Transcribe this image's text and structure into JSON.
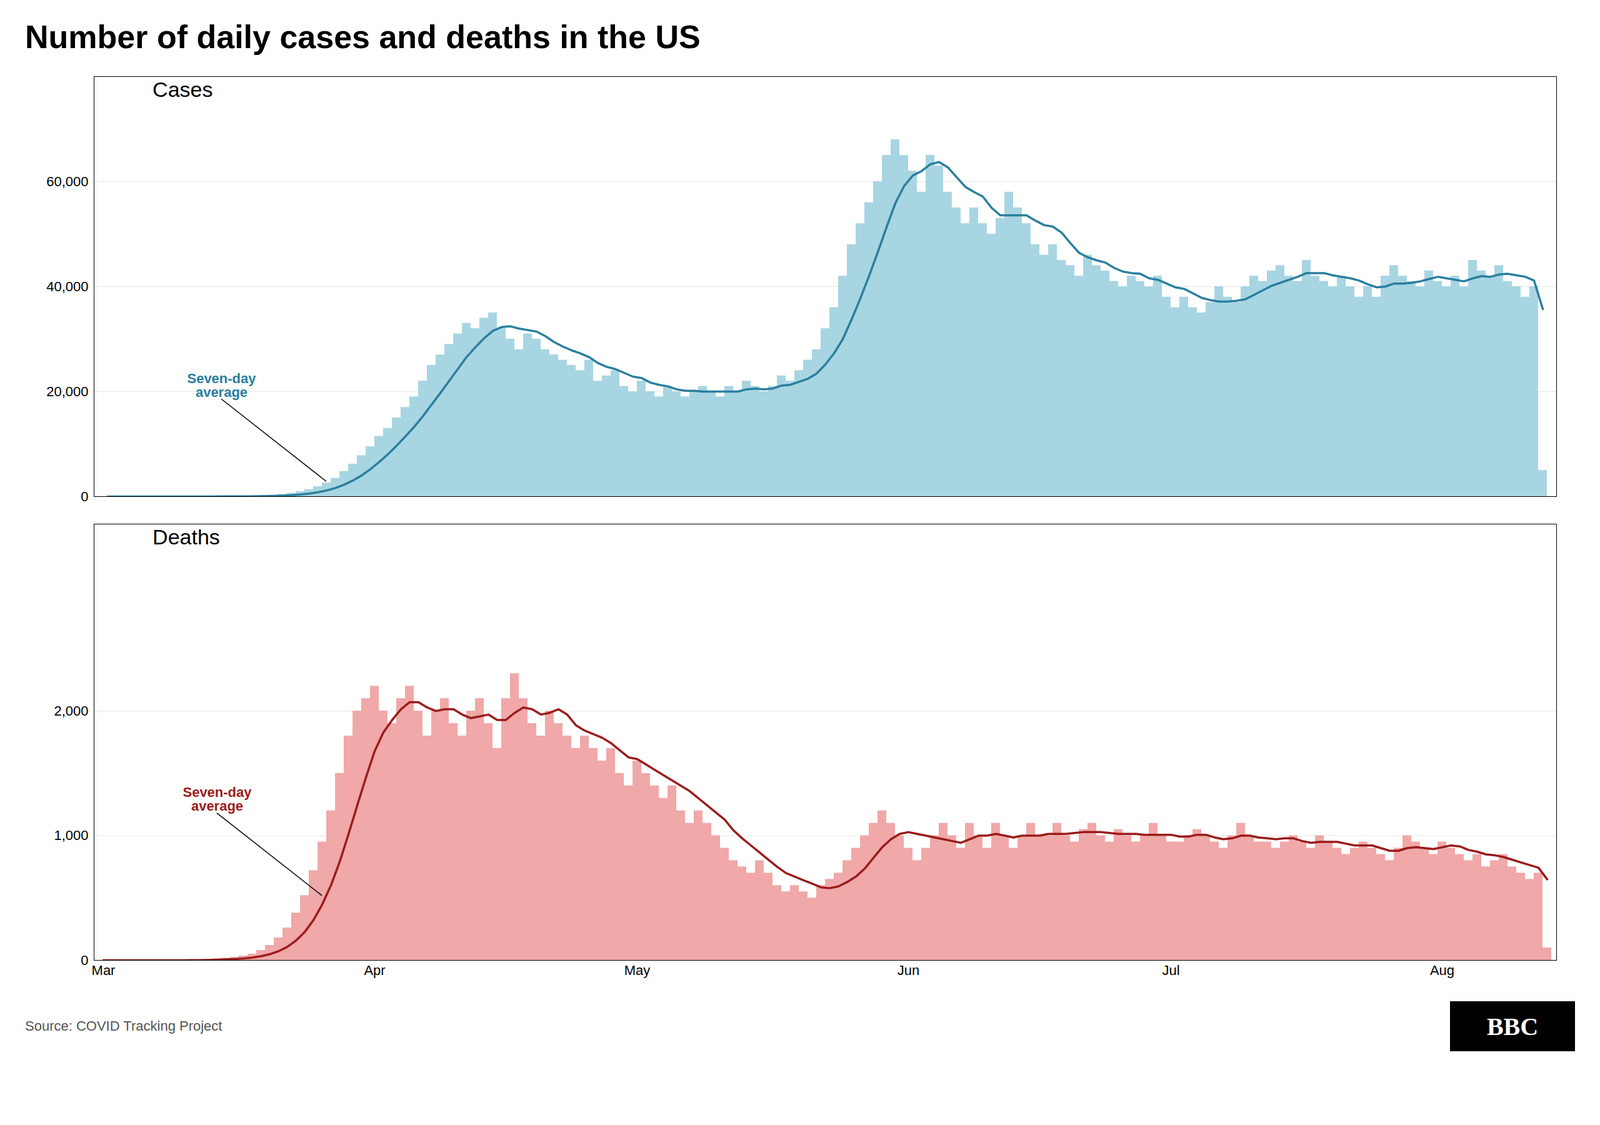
{
  "title": "Number of daily cases and deaths in the US",
  "caption": "Source: COVID Tracking Project",
  "logo": "BBC",
  "chart_data": [
    {
      "type": "bar",
      "title": "Cases",
      "annotations": [
        {
          "text": "Seven-day\naverage",
          "color": "#2a7f9e"
        }
      ],
      "series": [
        {
          "type": "bar",
          "color": "#a8d5e2",
          "values": [
            0,
            0,
            1,
            0,
            1,
            2,
            3,
            5,
            8,
            12,
            15,
            18,
            22,
            30,
            38,
            55,
            80,
            120,
            180,
            280,
            420,
            650,
            950,
            1350,
            1900,
            2600,
            3500,
            4800,
            6200,
            7800,
            9500,
            11500,
            13000,
            15000,
            17000,
            19000,
            22000,
            25000,
            27000,
            29000,
            31000,
            33000,
            32000,
            34000,
            35000,
            32000,
            30000,
            28000,
            31000,
            30000,
            28000,
            27000,
            26000,
            25000,
            24000,
            26000,
            22000,
            23000,
            24000,
            21000,
            20000,
            22000,
            20000,
            19000,
            21000,
            20000,
            19000,
            20000,
            21000,
            20000,
            19000,
            21000,
            20000,
            22000,
            21000,
            20000,
            21000,
            23000,
            22000,
            24000,
            26000,
            28000,
            32000,
            36000,
            42000,
            48000,
            52000,
            56000,
            60000,
            65000,
            68000,
            65000,
            62000,
            58000,
            65000,
            63000,
            58000,
            55000,
            52000,
            55000,
            52000,
            50000,
            53000,
            58000,
            55000,
            52000,
            48000,
            46000,
            48000,
            45000,
            44000,
            42000,
            46000,
            44000,
            43000,
            41000,
            40000,
            42000,
            41000,
            40000,
            42000,
            38000,
            36000,
            38000,
            36000,
            35000,
            37000,
            40000,
            38000,
            37000,
            40000,
            42000,
            41000,
            43000,
            44000,
            42000,
            41000,
            45000,
            42000,
            41000,
            40000,
            42000,
            40000,
            38000,
            40000,
            38000,
            42000,
            44000,
            42000,
            41000,
            40000,
            43000,
            41000,
            40000,
            42000,
            40000,
            45000,
            43000,
            42000,
            44000,
            41000,
            40000,
            38000,
            40000,
            5000
          ]
        },
        {
          "type": "line",
          "color": "#2a7f9e",
          "values": [
            0,
            0,
            0.333,
            0.25,
            0.4,
            0.667,
            1,
            1.714,
            2.857,
            4.429,
            6.571,
            9,
            11.857,
            15.714,
            20.429,
            27.143,
            36.857,
            51.857,
            75,
            111.857,
            167.571,
            255,
            382.857,
            564.286,
            818.571,
            1164.286,
            1624.286,
            2250,
            3042.857,
            4021.429,
            5185.714,
            6557.143,
            8042.857,
            9685.714,
            11428.571,
            13257.143,
            15285.714,
            17500,
            19714.286,
            22000,
            24285.714,
            26571.429,
            28428.571,
            30142.857,
            31571.429,
            32285.714,
            32428.571,
            32000,
            31714.286,
            31428.571,
            30571.429,
            29428.571,
            28571.429,
            27857.143,
            27285.714,
            26571.429,
            25428.571,
            24714.286,
            24285.714,
            23571.429,
            22857.143,
            22571.429,
            21714.286,
            21285.714,
            21000,
            20428.571,
            20142.857,
            20142.857,
            20000,
            20000,
            20000,
            20000,
            20000,
            20428.571,
            20571.429,
            20428.571,
            20571.429,
            21142.857,
            21285.714,
            21857.143,
            22428.571,
            23428.571,
            25142.857,
            27285.714,
            30000,
            33714.286,
            37714.286,
            42000,
            46571.429,
            51285.714,
            55857.143,
            59142.857,
            61142.857,
            62000,
            63285.714,
            63714.286,
            62714.286,
            60857.143,
            59000,
            58000,
            57142.857,
            55000,
            53571.429,
            53571.429,
            53571.429,
            53571.429,
            52571.429,
            51714.286,
            51428.571,
            50285.714,
            48285.714,
            46428.571,
            45571.429,
            45000,
            44571.429,
            43571.429,
            42857.143,
            42571.429,
            42428.571,
            41571.429,
            41285.714,
            40571.429,
            39857.143,
            39571.429,
            38714.286,
            37857.143,
            37428.571,
            37142.857,
            37142.857,
            37285.714,
            37571.429,
            38428.571,
            39285.714,
            40142.857,
            40714.286,
            41285.714,
            41857.143,
            42571.429,
            42571.429,
            42571.429,
            42142.857,
            41857.143,
            41571.429,
            41142.857,
            40428.571,
            39857.143,
            40000,
            40571.429,
            40571.429,
            40714.286,
            41000,
            41428.571,
            41857.143,
            41571.429,
            41285.714,
            41000,
            41571.429,
            42000,
            41857.143,
            42285.714,
            42428.571,
            42142.857,
            41857.143,
            41142.857,
            35714.286
          ]
        }
      ],
      "ylim": [
        0,
        80000
      ],
      "yticks": [
        0,
        {
          "value": 20000,
          "label": "20,000"
        },
        {
          "value": 40000,
          "label": "40,000"
        },
        {
          "value": 60000,
          "label": "60,000"
        }
      ],
      "grid": true,
      "tick_labels": "y"
    },
    {
      "type": "bar",
      "title": "Deaths",
      "annotations": [
        {
          "text": "Seven-day\naverage",
          "color": "#9b1c1c"
        }
      ],
      "categories": [
        "Mar",
        null,
        null,
        null,
        null,
        null,
        null,
        null,
        null,
        null,
        null,
        null,
        null,
        null,
        null,
        null,
        null,
        null,
        null,
        null,
        null,
        null,
        null,
        null,
        null,
        null,
        null,
        null,
        null,
        null,
        null,
        "Apr",
        null,
        null,
        null,
        null,
        null,
        null,
        null,
        null,
        null,
        null,
        null,
        null,
        null,
        null,
        null,
        null,
        null,
        null,
        null,
        null,
        null,
        null,
        null,
        null,
        null,
        null,
        null,
        null,
        null,
        "May",
        null,
        null,
        null,
        null,
        null,
        null,
        null,
        null,
        null,
        null,
        null,
        null,
        null,
        null,
        null,
        null,
        null,
        null,
        null,
        null,
        null,
        null,
        null,
        null,
        null,
        null,
        null,
        null,
        null,
        null,
        "Jun",
        null,
        null,
        null,
        null,
        null,
        null,
        null,
        null,
        null,
        null,
        null,
        null,
        null,
        null,
        null,
        null,
        null,
        null,
        null,
        null,
        null,
        null,
        null,
        null,
        null,
        null,
        null,
        null,
        null,
        "Jul",
        null,
        null,
        null,
        null,
        null,
        null,
        null,
        null,
        null,
        null,
        null,
        null,
        null,
        null,
        null,
        null,
        null,
        null,
        null,
        null,
        null,
        null,
        null,
        null,
        null,
        null,
        null,
        null,
        null,
        null,
        "Aug",
        null,
        null,
        null,
        null,
        null,
        null,
        null,
        null,
        null,
        null,
        null,
        null
      ],
      "series": [
        {
          "type": "bar",
          "color": "#f0a8a8",
          "values": [
            0,
            0,
            0,
            0,
            0,
            0,
            0,
            0,
            1,
            2,
            3,
            5,
            8,
            12,
            18,
            25,
            35,
            50,
            80,
            120,
            180,
            260,
            380,
            520,
            720,
            950,
            1200,
            1500,
            1800,
            2000,
            2100,
            2200,
            2000,
            1900,
            2100,
            2200,
            2000,
            1800,
            2000,
            2100,
            1900,
            1800,
            2000,
            2100,
            1900,
            1700,
            2100,
            2300,
            2100,
            1900,
            1800,
            2000,
            1900,
            1800,
            1700,
            1800,
            1700,
            1600,
            1700,
            1500,
            1400,
            1600,
            1500,
            1400,
            1300,
            1400,
            1200,
            1100,
            1200,
            1100,
            1000,
            900,
            800,
            750,
            700,
            800,
            700,
            600,
            550,
            600,
            550,
            500,
            600,
            650,
            700,
            800,
            900,
            1000,
            1100,
            1200,
            1100,
            1000,
            900,
            800,
            900,
            1000,
            1100,
            1000,
            900,
            1100,
            1000,
            900,
            1100,
            1000,
            900,
            1000,
            1100,
            1000,
            1000,
            1100,
            1000,
            950,
            1050,
            1100,
            1000,
            950,
            1050,
            1000,
            950,
            1000,
            1100,
            1000,
            950,
            950,
            1000,
            1050,
            1000,
            950,
            900,
            1000,
            1100,
            1000,
            950,
            950,
            900,
            950,
            1000,
            950,
            900,
            1000,
            950,
            900,
            850,
            900,
            950,
            900,
            850,
            800,
            900,
            1000,
            950,
            900,
            850,
            950,
            900,
            850,
            800,
            850,
            750,
            800,
            850,
            750,
            700,
            650,
            700,
            100
          ]
        },
        {
          "type": "line",
          "color": "#9b1c1c",
          "values": [
            0,
            0,
            0,
            0,
            0,
            0,
            0,
            0,
            0.143,
            0.429,
            0.857,
            1.571,
            2.714,
            4.429,
            7,
            10.429,
            15.143,
            21.857,
            32.571,
            48.571,
            72.571,
            107.143,
            157.857,
            227.143,
            322.857,
            447.143,
            601.429,
            790,
            1010,
            1241.429,
            1467.143,
            1678.571,
            1828.571,
            1928.571,
            2014.286,
            2071.429,
            2071.429,
            2028.571,
            2000,
            2014.286,
            2014.286,
            1971.429,
            1942.857,
            1957.143,
            1971.429,
            1928.571,
            1928.571,
            1985.714,
            2028.571,
            2014.286,
            1971.429,
            1985.714,
            2014.286,
            1971.429,
            1885.714,
            1842.857,
            1814.286,
            1785.714,
            1742.857,
            1685.714,
            1628.571,
            1614.286,
            1571.429,
            1528.571,
            1485.714,
            1442.857,
            1400,
            1357.143,
            1300,
            1242.857,
            1185.714,
            1128.571,
            1042.857,
            978.571,
            921.429,
            864.286,
            807.143,
            750,
            700,
            671.429,
            642.857,
            614.286,
            585.714,
            578.571,
            592.857,
            628.571,
            671.429,
            735.714,
            821.429,
            907.143,
            971.429,
            1014.286,
            1028.571,
            1014.286,
            1000,
            985.714,
            971.429,
            957.143,
            942.857,
            971.429,
            1000,
            1000,
            1014.286,
            1000,
            985.714,
            1000,
            1000,
            1000,
            1014.286,
            1014.286,
            1014.286,
            1021.429,
            1028.571,
            1028.571,
            1028.571,
            1021.429,
            1014.286,
            1014.286,
            1014.286,
            1007.143,
            1007.143,
            1007.143,
            1007.143,
            992.857,
            992.857,
            1007.143,
            1007.143,
            985.714,
            971.429,
            978.571,
            1000,
            1000,
            985.714,
            978.571,
            971.429,
            978.571,
            978.571,
            957.143,
            942.857,
            950,
            950,
            950,
            935.714,
            921.429,
            921.429,
            921.429,
            900,
            878.571,
            878.571,
            900,
            907.143,
            900,
            892.857,
            907.143,
            921.429,
            914.286,
            885.714,
            871.429,
            850,
            842.857,
            828.571,
            807.143,
            785.714,
            764.286,
            742.857,
            650
          ]
        }
      ],
      "ylim": [
        0,
        3500
      ],
      "yticks": [
        0,
        {
          "value": 1000,
          "label": "1,000"
        },
        {
          "value": 2000,
          "label": "2,000"
        }
      ],
      "grid": true
    }
  ]
}
